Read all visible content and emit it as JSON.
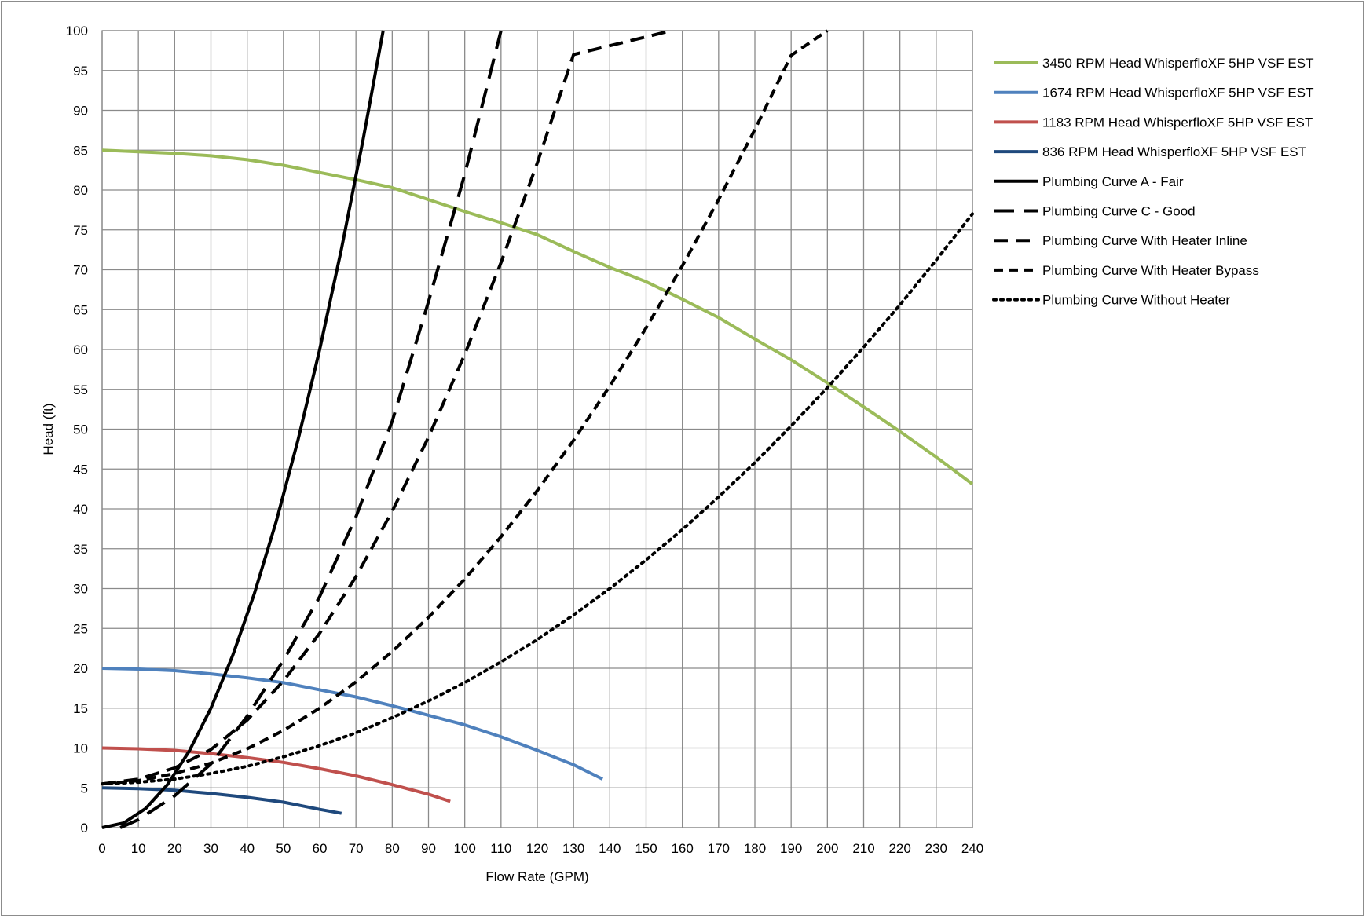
{
  "chart_data": {
    "type": "line",
    "xlabel": "Flow Rate (GPM)",
    "ylabel": "Head (ft)",
    "xlim": [
      0,
      240
    ],
    "ylim": [
      0,
      100
    ],
    "x_ticks": [
      0,
      10,
      20,
      30,
      40,
      50,
      60,
      70,
      80,
      90,
      100,
      110,
      120,
      130,
      140,
      150,
      160,
      170,
      180,
      190,
      200,
      210,
      220,
      230,
      240
    ],
    "y_ticks": [
      0,
      5,
      10,
      15,
      20,
      25,
      30,
      35,
      40,
      45,
      50,
      55,
      60,
      65,
      70,
      75,
      80,
      85,
      90,
      95,
      100
    ],
    "grid": true,
    "legend_position": "right",
    "series": [
      {
        "name": "3450 RPM Head WhisperfloXF 5HP VSF EST",
        "color": "#9BBB59",
        "dash": "solid",
        "points": [
          [
            0,
            85
          ],
          [
            10,
            84.8
          ],
          [
            20,
            84.6
          ],
          [
            30,
            84.3
          ],
          [
            40,
            83.8
          ],
          [
            50,
            83.1
          ],
          [
            60,
            82.2
          ],
          [
            70,
            81.3
          ],
          [
            80,
            80.3
          ],
          [
            90,
            78.8
          ],
          [
            100,
            77.3
          ],
          [
            110,
            75.9
          ],
          [
            120,
            74.4
          ],
          [
            130,
            72.3
          ],
          [
            140,
            70.3
          ],
          [
            150,
            68.5
          ],
          [
            160,
            66.3
          ],
          [
            170,
            64
          ],
          [
            180,
            61.3
          ],
          [
            190,
            58.7
          ],
          [
            200,
            55.8
          ],
          [
            210,
            52.8
          ],
          [
            220,
            49.7
          ],
          [
            230,
            46.5
          ],
          [
            240,
            43.1
          ]
        ]
      },
      {
        "name": "1674 RPM Head WhisperfloXF 5HP VSF EST",
        "color": "#4F81BD",
        "dash": "solid",
        "points": [
          [
            0,
            20
          ],
          [
            10,
            19.9
          ],
          [
            20,
            19.7
          ],
          [
            30,
            19.3
          ],
          [
            40,
            18.8
          ],
          [
            50,
            18.2
          ],
          [
            60,
            17.3
          ],
          [
            70,
            16.4
          ],
          [
            80,
            15.3
          ],
          [
            90,
            14.1
          ],
          [
            100,
            12.9
          ],
          [
            110,
            11.4
          ],
          [
            120,
            9.7
          ],
          [
            130,
            7.9
          ],
          [
            138,
            6.1
          ]
        ]
      },
      {
        "name": "1183 RPM Head WhisperfloXF 5HP VSF EST",
        "color": "#C0504D",
        "dash": "solid",
        "points": [
          [
            0,
            10
          ],
          [
            10,
            9.9
          ],
          [
            20,
            9.7
          ],
          [
            30,
            9.3
          ],
          [
            40,
            8.8
          ],
          [
            50,
            8.2
          ],
          [
            60,
            7.4
          ],
          [
            70,
            6.5
          ],
          [
            80,
            5.4
          ],
          [
            90,
            4.2
          ],
          [
            96,
            3.3
          ]
        ]
      },
      {
        "name": "836 RPM Head WhisperfloXF 5HP VSF EST",
        "color": "#1F497D",
        "dash": "solid",
        "points": [
          [
            0,
            5
          ],
          [
            10,
            4.9
          ],
          [
            20,
            4.7
          ],
          [
            30,
            4.3
          ],
          [
            40,
            3.8
          ],
          [
            50,
            3.2
          ],
          [
            60,
            2.3
          ],
          [
            66,
            1.8
          ]
        ]
      },
      {
        "name": "Plumbing Curve A - Fair",
        "color": "#000000",
        "dash": "solid",
        "points": [
          [
            0,
            0
          ],
          [
            6,
            0.6
          ],
          [
            12,
            2.4
          ],
          [
            18,
            5.4
          ],
          [
            24,
            9.6
          ],
          [
            30,
            15
          ],
          [
            36,
            21.6
          ],
          [
            42,
            29.4
          ],
          [
            48,
            38.4
          ],
          [
            54,
            48.6
          ],
          [
            60,
            60
          ],
          [
            66,
            72.6
          ],
          [
            72,
            86.4
          ],
          [
            77.5,
            100
          ]
        ]
      },
      {
        "name": "Plumbing Curve C - Good",
        "color": "#000000",
        "dash": "longdash",
        "points": [
          [
            5,
            0
          ],
          [
            10,
            1
          ],
          [
            20,
            4
          ],
          [
            30,
            8
          ],
          [
            40,
            14
          ],
          [
            50,
            21
          ],
          [
            60,
            29
          ],
          [
            70,
            39
          ],
          [
            80,
            51
          ],
          [
            90,
            66
          ],
          [
            100,
            82
          ],
          [
            105,
            91
          ],
          [
            110,
            100
          ]
        ]
      },
      {
        "name": "Plumbing Curve With Heater Inline",
        "color": "#000000",
        "dash": "dash",
        "points": [
          [
            0,
            5.5
          ],
          [
            10,
            6.1
          ],
          [
            20,
            7.5
          ],
          [
            30,
            9.8
          ],
          [
            40,
            13.5
          ],
          [
            50,
            18.4
          ],
          [
            60,
            24.4
          ],
          [
            70,
            31.5
          ],
          [
            80,
            39.7
          ],
          [
            90,
            49
          ],
          [
            100,
            59.4
          ],
          [
            110,
            70.9
          ],
          [
            120,
            83.4
          ],
          [
            130,
            97
          ],
          [
            157,
            100
          ]
        ]
      },
      {
        "name": "Plumbing Curve With Heater Bypass",
        "color": "#000000",
        "dash": "shortdash",
        "points": [
          [
            0,
            5.5
          ],
          [
            10,
            5.9
          ],
          [
            20,
            6.8
          ],
          [
            30,
            8.1
          ],
          [
            40,
            9.9
          ],
          [
            50,
            12.2
          ],
          [
            60,
            15
          ],
          [
            70,
            18.3
          ],
          [
            80,
            22.1
          ],
          [
            90,
            26.4
          ],
          [
            100,
            31.2
          ],
          [
            110,
            36.5
          ],
          [
            120,
            42.3
          ],
          [
            130,
            48.6
          ],
          [
            140,
            55.4
          ],
          [
            150,
            62.7
          ],
          [
            160,
            70.5
          ],
          [
            170,
            78.8
          ],
          [
            180,
            87.6
          ],
          [
            190,
            96.9
          ],
          [
            200,
            100
          ]
        ]
      },
      {
        "name": "Plumbing Curve Without Heater",
        "color": "#000000",
        "dash": "dot",
        "points": [
          [
            0,
            5.5
          ],
          [
            10,
            5.7
          ],
          [
            20,
            6.1
          ],
          [
            30,
            6.8
          ],
          [
            40,
            7.7
          ],
          [
            50,
            8.9
          ],
          [
            60,
            10.3
          ],
          [
            70,
            11.9
          ],
          [
            80,
            13.8
          ],
          [
            90,
            15.9
          ],
          [
            100,
            18.2
          ],
          [
            110,
            20.8
          ],
          [
            120,
            23.6
          ],
          [
            130,
            26.7
          ],
          [
            140,
            30
          ],
          [
            150,
            33.6
          ],
          [
            160,
            37.4
          ],
          [
            170,
            41.5
          ],
          [
            180,
            45.8
          ],
          [
            190,
            50.4
          ],
          [
            200,
            55.2
          ],
          [
            210,
            60.3
          ],
          [
            220,
            65.6
          ],
          [
            230,
            71.2
          ],
          [
            240,
            77
          ]
        ]
      }
    ]
  }
}
